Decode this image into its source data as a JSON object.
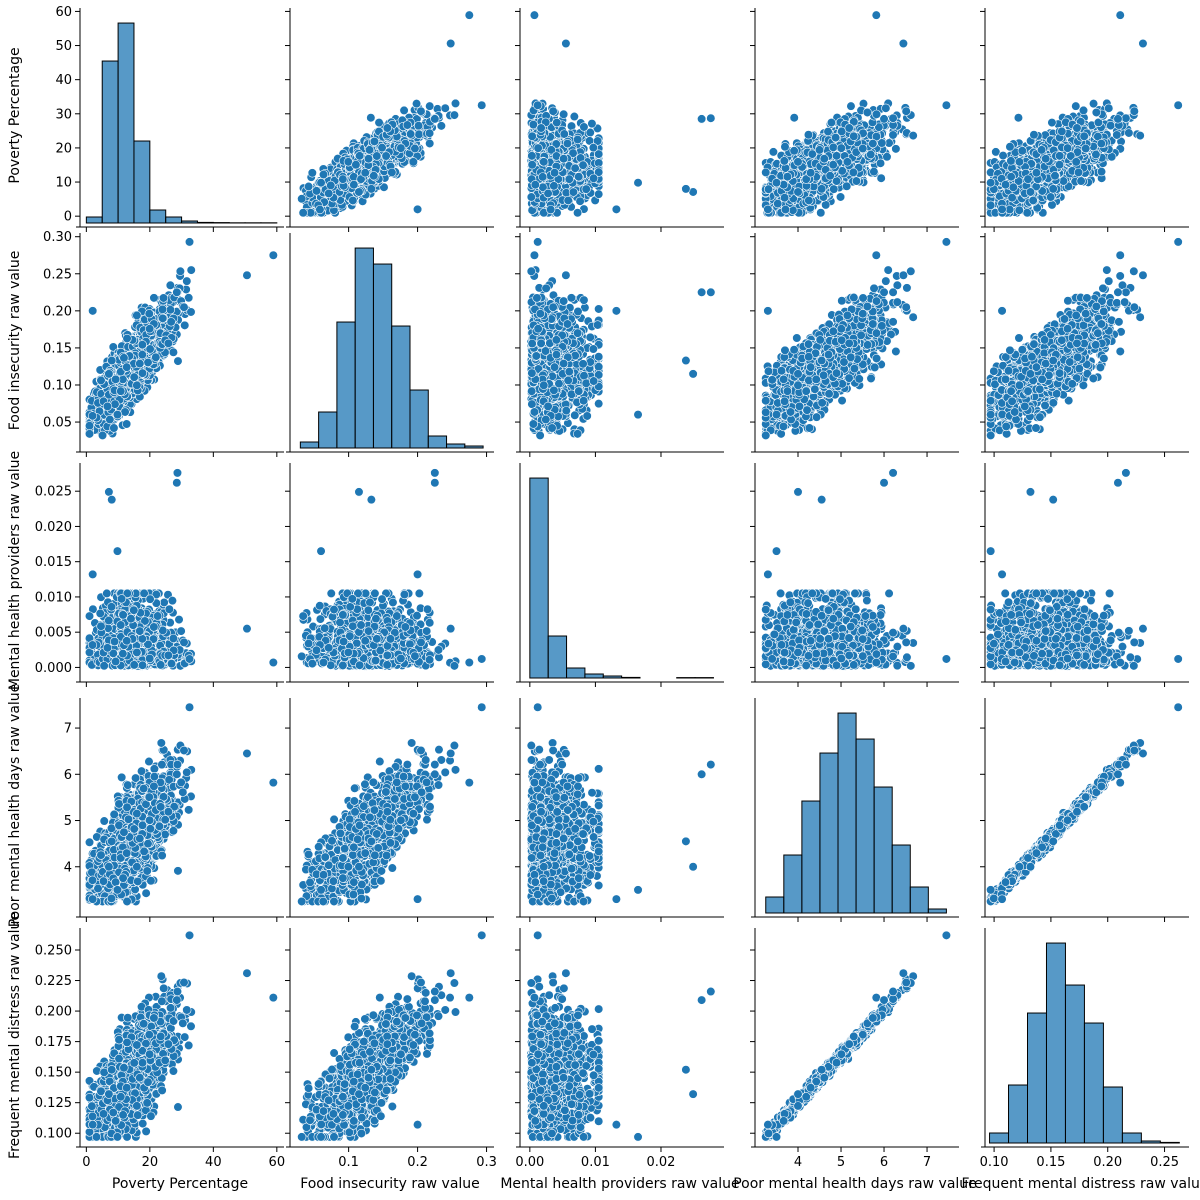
{
  "chart_data": {
    "type": "pairplot",
    "variables": [
      "Poverty Percentage",
      "Food insecurity raw value",
      "Mental health providers raw value",
      "Poor mental health days raw value",
      "Frequent mental distress raw value"
    ],
    "ranges": [
      [
        -2,
        61
      ],
      [
        0.015,
        0.305
      ],
      [
        -0.0015,
        0.029
      ],
      [
        3.0,
        7.65
      ],
      [
        0.092,
        0.268
      ]
    ],
    "ticks": [
      {
        "values": [
          0,
          10,
          20,
          30,
          40,
          50,
          60
        ],
        "labels": [
          "0",
          "10",
          "20",
          "30",
          "40",
          "50",
          "60"
        ]
      },
      {
        "values": [
          0.05,
          0.1,
          0.15,
          0.2,
          0.25,
          0.3
        ],
        "labels": [
          "0.05",
          "0.10",
          "0.15",
          "0.20",
          "0.25",
          "0.30"
        ]
      },
      {
        "values": [
          0.0,
          0.005,
          0.01,
          0.015,
          0.02,
          0.025
        ],
        "labels": [
          "0.000",
          "0.005",
          "0.010",
          "0.015",
          "0.020",
          "0.025"
        ]
      },
      {
        "values": [
          4,
          5,
          6,
          7
        ],
        "labels": [
          "4",
          "5",
          "6",
          "7"
        ]
      },
      {
        "values": [
          0.1,
          0.125,
          0.15,
          0.175,
          0.2,
          0.225,
          0.25
        ],
        "labels": [
          "0.100",
          "0.125",
          "0.150",
          "0.175",
          "0.200",
          "0.225",
          "0.250"
        ]
      }
    ],
    "x_ticks": [
      {
        "values": [
          0,
          20,
          40,
          60
        ],
        "labels": [
          "0",
          "20",
          "40",
          "60"
        ]
      },
      {
        "values": [
          0.1,
          0.2,
          0.3
        ],
        "labels": [
          "0.1",
          "0.2",
          "0.3"
        ]
      },
      {
        "values": [
          0.0,
          0.01,
          0.02
        ],
        "labels": [
          "0.00",
          "0.01",
          "0.02"
        ]
      },
      {
        "values": [
          4,
          5,
          6,
          7
        ],
        "labels": [
          "4",
          "5",
          "6",
          "7"
        ]
      },
      {
        "values": [
          0.1,
          0.15,
          0.2,
          0.25
        ],
        "labels": [
          "0.10",
          "0.15",
          "0.20",
          "0.25"
        ]
      }
    ],
    "histograms": [
      {
        "edges": [
          0,
          5,
          10,
          15,
          20,
          25,
          30,
          35,
          40,
          45,
          50,
          55,
          60
        ],
        "relative_heights": [
          0.03,
          0.81,
          1.0,
          0.41,
          0.065,
          0.03,
          0.01,
          0.003,
          0.002,
          0.001,
          0.001,
          0.001
        ]
      },
      {
        "edges": [
          0.03,
          0.0565,
          0.083,
          0.1095,
          0.136,
          0.1625,
          0.189,
          0.2155,
          0.242,
          0.2685,
          0.295
        ],
        "relative_heights": [
          0.03,
          0.18,
          0.63,
          1.0,
          0.92,
          0.61,
          0.29,
          0.06,
          0.02,
          0.01
        ]
      },
      {
        "edges": [
          0.0,
          0.0028,
          0.0056,
          0.0084,
          0.0112,
          0.014,
          0.0168,
          0.0196,
          0.0224,
          0.0252,
          0.028
        ],
        "relative_heights": [
          1.0,
          0.21,
          0.05,
          0.02,
          0.01,
          0.003,
          0.0,
          0.0,
          0.002,
          0.002
        ]
      },
      {
        "edges": [
          3.25,
          3.67,
          4.09,
          4.51,
          4.93,
          5.35,
          5.77,
          6.19,
          6.61,
          7.03,
          7.45
        ],
        "relative_heights": [
          0.08,
          0.29,
          0.56,
          0.8,
          1.0,
          0.87,
          0.63,
          0.34,
          0.13,
          0.02
        ]
      },
      {
        "edges": [
          0.096,
          0.1127,
          0.1294,
          0.1461,
          0.1628,
          0.1795,
          0.1962,
          0.2129,
          0.2296,
          0.2463,
          0.263
        ],
        "relative_heights": [
          0.05,
          0.29,
          0.65,
          1.0,
          0.79,
          0.6,
          0.28,
          0.05,
          0.01,
          0.003
        ]
      }
    ],
    "scatter_samples": 1400,
    "outliers": [
      [
        58.9,
        0.275,
        0.0007,
        5.82,
        0.211
      ],
      [
        50.6,
        0.248,
        0.0055,
        6.45,
        0.231
      ],
      [
        28.7,
        0.225,
        0.0276,
        6.21,
        0.216
      ],
      [
        28.5,
        0.225,
        0.0262,
        6.0,
        0.209
      ],
      [
        7.1,
        0.115,
        0.0249,
        4.0,
        0.132
      ],
      [
        8.0,
        0.133,
        0.0238,
        4.55,
        0.152
      ],
      [
        32.5,
        0.293,
        0.0012,
        7.45,
        0.262
      ],
      [
        2.0,
        0.2,
        0.0132,
        3.3,
        0.107
      ],
      [
        9.8,
        0.06,
        0.0165,
        3.5,
        0.097
      ]
    ]
  }
}
